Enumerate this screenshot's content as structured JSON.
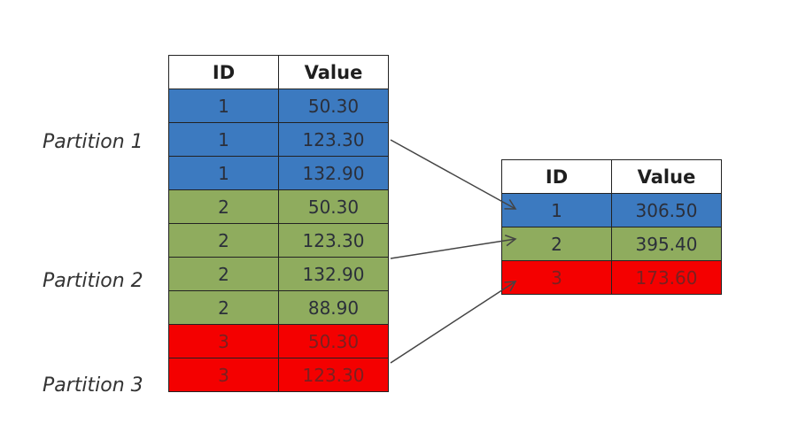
{
  "partition_labels": [
    "Partition 1",
    "Partition 2",
    "Partition 3"
  ],
  "left_table": {
    "headers": [
      "ID",
      "Value"
    ],
    "rows": [
      {
        "id": "1",
        "value": "50.30",
        "partition": 1
      },
      {
        "id": "1",
        "value": "123.30",
        "partition": 1
      },
      {
        "id": "1",
        "value": "132.90",
        "partition": 1
      },
      {
        "id": "2",
        "value": "50.30",
        "partition": 2
      },
      {
        "id": "2",
        "value": "123.30",
        "partition": 2
      },
      {
        "id": "2",
        "value": "132.90",
        "partition": 2
      },
      {
        "id": "2",
        "value": "88.90",
        "partition": 2
      },
      {
        "id": "3",
        "value": "50.30",
        "partition": 3
      },
      {
        "id": "3",
        "value": "123.30",
        "partition": 3
      }
    ]
  },
  "right_table": {
    "headers": [
      "ID",
      "Value"
    ],
    "rows": [
      {
        "id": "1",
        "value": "306.50",
        "partition": 1
      },
      {
        "id": "2",
        "value": "395.40",
        "partition": 2
      },
      {
        "id": "3",
        "value": "173.60",
        "partition": 3
      }
    ]
  },
  "colors": {
    "partition_1": "#3c7ac0",
    "partition_2": "#8fac5e",
    "partition_3": "#f40000",
    "arrow": "#444444"
  }
}
